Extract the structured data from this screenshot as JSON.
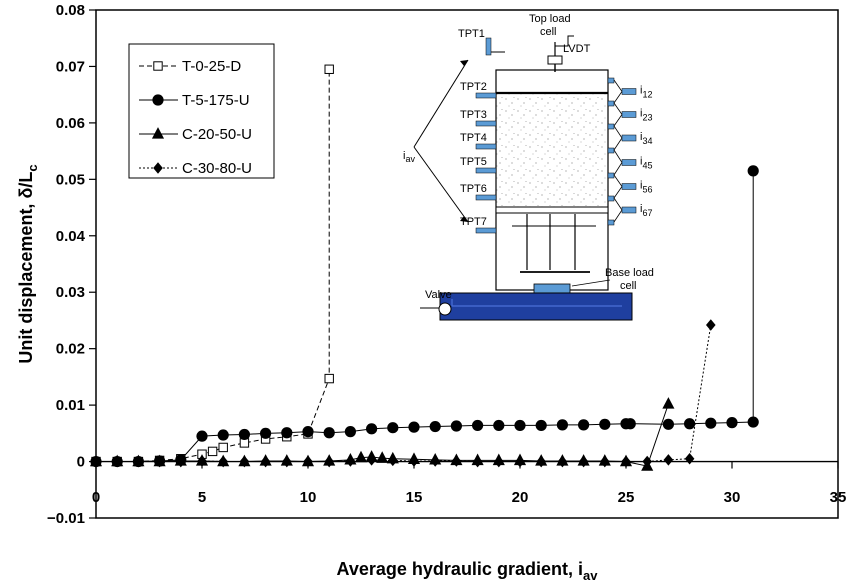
{
  "chart_data": {
    "type": "scatter",
    "xlabel": "Average hydraulic gradient, i",
    "xlabel_sub": "av",
    "ylabel": "Unit displacement, δ/L",
    "ylabel_sub": "c",
    "xlim": [
      0,
      35
    ],
    "ylim": [
      -0.01,
      0.08
    ],
    "x_ticks": [
      0,
      5,
      10,
      15,
      20,
      25,
      30,
      35
    ],
    "y_ticks": [
      -0.01,
      0,
      0.01,
      0.02,
      0.03,
      0.04,
      0.05,
      0.06,
      0.07,
      0.08
    ],
    "x_tick_labels": [
      "0",
      "5",
      "10",
      "15",
      "20",
      "25",
      "30",
      "35"
    ],
    "y_tick_labels": [
      "−0.01",
      "0",
      "0.01",
      "0.02",
      "0.03",
      "0.04",
      "0.05",
      "0.06",
      "0.07",
      "0.08"
    ],
    "grid": false,
    "legend_position": "top-left",
    "series": [
      {
        "name": "T-0-25-D",
        "marker": "square-open",
        "line": "dashed",
        "points": [
          [
            0,
            0
          ],
          [
            1,
            0
          ],
          [
            2,
            0
          ],
          [
            3,
            0.0002
          ],
          [
            4,
            0.0005
          ],
          [
            5,
            0.0013
          ],
          [
            5.5,
            0.0018
          ],
          [
            6,
            0.0025
          ],
          [
            7,
            0.0033
          ],
          [
            8,
            0.004
          ],
          [
            9,
            0.0044
          ],
          [
            10,
            0.0049
          ],
          [
            11,
            0.0147
          ],
          [
            11,
            0.0695
          ]
        ]
      },
      {
        "name": "T-5-175-U",
        "marker": "circle-filled",
        "line": "solid",
        "points": [
          [
            0,
            0
          ],
          [
            1,
            0
          ],
          [
            2,
            0
          ],
          [
            3,
            0.0001
          ],
          [
            4,
            0.0003
          ],
          [
            5,
            0.0045
          ],
          [
            6,
            0.0047
          ],
          [
            7,
            0.0048
          ],
          [
            8,
            0.005
          ],
          [
            9,
            0.0051
          ],
          [
            10,
            0.0053
          ],
          [
            11,
            0.0051
          ],
          [
            12,
            0.0053
          ],
          [
            13,
            0.0058
          ],
          [
            14,
            0.006
          ],
          [
            15,
            0.0061
          ],
          [
            16,
            0.0062
          ],
          [
            17,
            0.0063
          ],
          [
            18,
            0.0064
          ],
          [
            19,
            0.0064
          ],
          [
            20,
            0.0064
          ],
          [
            21,
            0.0064
          ],
          [
            22,
            0.0065
          ],
          [
            23,
            0.0065
          ],
          [
            24,
            0.0066
          ],
          [
            25,
            0.0067
          ],
          [
            25.2,
            0.0067
          ],
          [
            27,
            0.0066
          ],
          [
            28,
            0.0067
          ],
          [
            29,
            0.0068
          ],
          [
            30,
            0.0069
          ],
          [
            31,
            0.007
          ],
          [
            31,
            0.0515
          ]
        ]
      },
      {
        "name": "C-20-50-U",
        "marker": "triangle-filled",
        "line": "solid",
        "points": [
          [
            0,
            0
          ],
          [
            1,
            0
          ],
          [
            2,
            0
          ],
          [
            3,
            0
          ],
          [
            4,
            0.0001
          ],
          [
            5,
            0.0001
          ],
          [
            6,
            0
          ],
          [
            7,
            0
          ],
          [
            8,
            0.0001
          ],
          [
            9,
            0.0001
          ],
          [
            10,
            0
          ],
          [
            11,
            0.0001
          ],
          [
            12,
            0.0003
          ],
          [
            12.5,
            0.0007
          ],
          [
            13,
            0.0008
          ],
          [
            13.5,
            0.0006
          ],
          [
            14,
            0.0005
          ],
          [
            15,
            0.0004
          ],
          [
            16,
            0.0003
          ],
          [
            17,
            0.0002
          ],
          [
            18,
            0.0002
          ],
          [
            19,
            0.0002
          ],
          [
            20,
            0.0002
          ],
          [
            21,
            0.0001
          ],
          [
            22,
            0.0001
          ],
          [
            23,
            0.0001
          ],
          [
            24,
            0.0001
          ],
          [
            25,
            0
          ],
          [
            26,
            -0.0008
          ],
          [
            27,
            0.0102
          ]
        ]
      },
      {
        "name": "C-30-80-U",
        "marker": "diamond-filled",
        "line": "dotted",
        "points": [
          [
            0,
            0
          ],
          [
            1,
            0
          ],
          [
            2,
            0
          ],
          [
            3,
            0
          ],
          [
            4,
            0
          ],
          [
            5,
            0.0001
          ],
          [
            6,
            0
          ],
          [
            7,
            0
          ],
          [
            8,
            0
          ],
          [
            9,
            0
          ],
          [
            10,
            0
          ],
          [
            11,
            0
          ],
          [
            12,
            0.0001
          ],
          [
            13,
            0.0003
          ],
          [
            14,
            0.0002
          ],
          [
            15,
            0.0001
          ],
          [
            16,
            0.0001
          ],
          [
            17,
            0.0001
          ],
          [
            18,
            0
          ],
          [
            19,
            0
          ],
          [
            20,
            0
          ],
          [
            21,
            0
          ],
          [
            22,
            0
          ],
          [
            23,
            0
          ],
          [
            24,
            0
          ],
          [
            25,
            0
          ],
          [
            26,
            0
          ],
          [
            27,
            0.0003
          ],
          [
            28,
            0.0005
          ],
          [
            29,
            0.0242
          ]
        ]
      }
    ],
    "inset": {
      "labels": {
        "tpt1": "TPT1",
        "top_load": "Top load",
        "cell": "cell",
        "lvdt": "LVDT",
        "tpt2": "TPT2",
        "tpt3": "TPT3",
        "tpt4": "TPT4",
        "tpt5": "TPT5",
        "tpt6": "TPT6",
        "tpt7": "TPT7",
        "iav_main": "i",
        "iav_sub": "av",
        "base_load": "Base load",
        "base_cell": "cell",
        "valve": "Valve"
      },
      "gradients": [
        {
          "main": "i",
          "sub": "12"
        },
        {
          "main": "i",
          "sub": "23"
        },
        {
          "main": "i",
          "sub": "34"
        },
        {
          "main": "i",
          "sub": "45"
        },
        {
          "main": "i",
          "sub": "56"
        },
        {
          "main": "i",
          "sub": "67"
        }
      ],
      "colors": {
        "port": "#5b9bd5",
        "base": "#1f3f9f",
        "base_light": "#4a6fd8"
      }
    }
  }
}
